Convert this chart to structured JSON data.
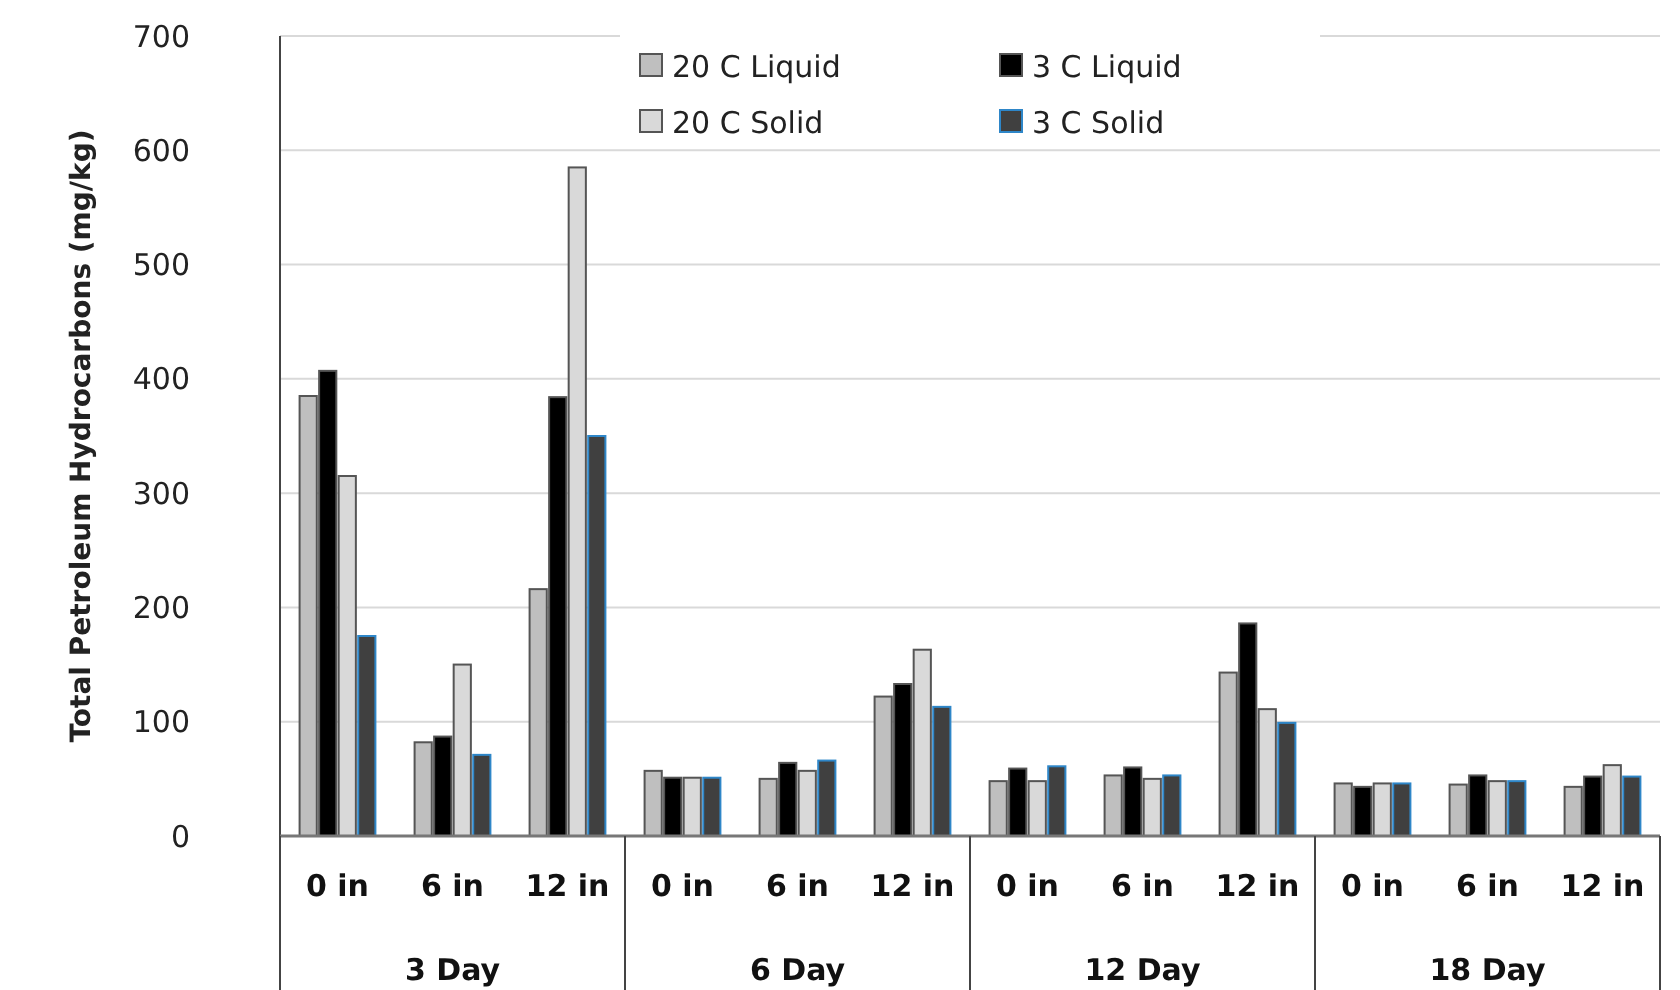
{
  "chart_data": {
    "type": "bar",
    "ylabel": "Total Petroleum Hydrocarbons (mg/kg)",
    "categories": [
      "0 in",
      "6 in",
      "12 in",
      "0 in",
      "6 in",
      "12 in",
      "0 in",
      "6 in",
      "12 in",
      "0 in",
      "6 in",
      "12 in"
    ],
    "annotations": [
      "3 Day",
      "6 Day",
      "12 Day",
      "18 Day"
    ],
    "series": [
      {
        "name": "20 C Liquid",
        "color": "#bfbfbf",
        "values": [
          385,
          82,
          216,
          57,
          50,
          122,
          48,
          53,
          143,
          46,
          45,
          43
        ]
      },
      {
        "name": "3 C Liquid",
        "color": "#000000",
        "values": [
          407,
          87,
          384,
          51,
          64,
          133,
          59,
          60,
          186,
          43,
          53,
          52
        ]
      },
      {
        "name": "20 C Solid",
        "color": "#d9d9d9",
        "values": [
          315,
          150,
          585,
          51,
          57,
          163,
          48,
          50,
          111,
          46,
          48,
          62
        ]
      },
      {
        "name": "3 C Solid",
        "color": "#404040",
        "values": [
          175,
          71,
          350,
          51,
          66,
          113,
          61,
          53,
          99,
          46,
          48,
          52
        ]
      }
    ],
    "ylim": [
      0,
      700
    ],
    "yticks": [
      0,
      100,
      200,
      300,
      400,
      500,
      600,
      700
    ],
    "grid": "y",
    "legend": "top"
  }
}
